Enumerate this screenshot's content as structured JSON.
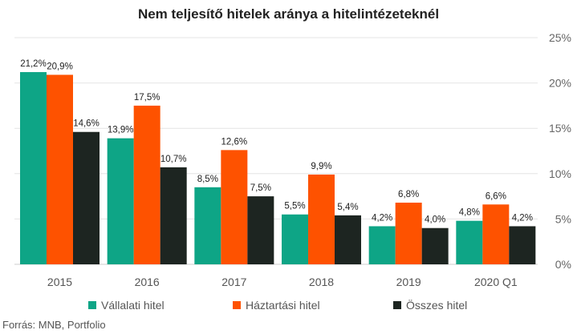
{
  "chart_data": {
    "type": "bar",
    "title": "Nem teljesítő hitelek aránya a hitelintézeteknél",
    "categories": [
      "2015",
      "2016",
      "2017",
      "2018",
      "2019",
      "2020 Q1"
    ],
    "series": [
      {
        "name": "Vállalati hitel",
        "color": "#0ea586",
        "values": [
          21.2,
          13.9,
          8.5,
          5.5,
          4.2,
          4.8
        ],
        "labels": [
          "21,2%",
          "13,9%",
          "8,5%",
          "5,5%",
          "4,2%",
          "4,8%"
        ]
      },
      {
        "name": "Háztartási hitel",
        "color": "#fe5200",
        "values": [
          20.9,
          17.5,
          12.6,
          9.9,
          6.8,
          6.6
        ],
        "labels": [
          "20,9%",
          "17,5%",
          "12,6%",
          "9,9%",
          "6,8%",
          "6,6%"
        ]
      },
      {
        "name": "Összes hitel",
        "color": "#1d2521",
        "values": [
          14.6,
          10.7,
          7.5,
          5.4,
          4.0,
          4.2
        ],
        "labels": [
          "14,6%",
          "10,7%",
          "7,5%",
          "5,4%",
          "4,0%",
          "4,2%"
        ]
      }
    ],
    "yticks": [
      "0%",
      "5%",
      "10%",
      "15%",
      "20%",
      "25%"
    ],
    "ylim": [
      0,
      25
    ],
    "ylabel": "",
    "xlabel": "",
    "y_axis_side": "right",
    "grid": true,
    "legend_position": "bottom"
  },
  "source": "Forrás: MNB, Portfolio"
}
